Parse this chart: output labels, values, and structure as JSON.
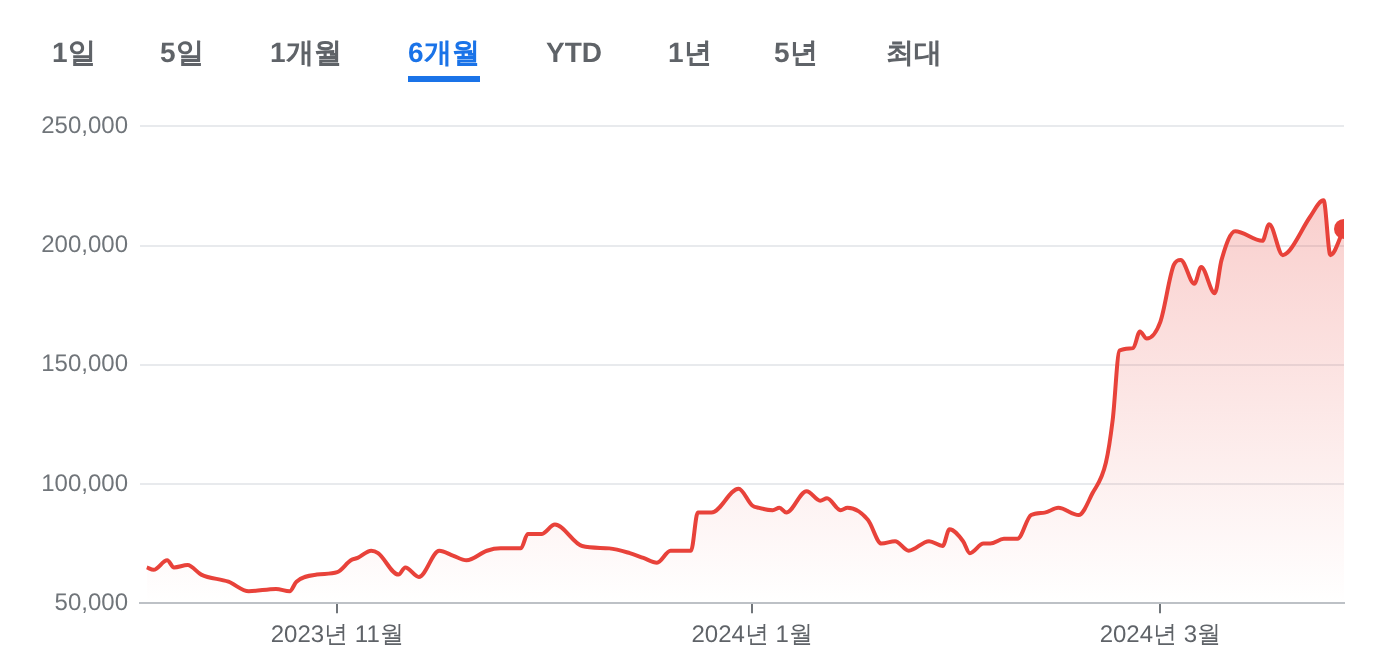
{
  "chart_data": {
    "type": "area",
    "annotations": [
      "1일",
      "5일",
      "1개월",
      "6개월",
      "YTD",
      "1년",
      "5년",
      "최대"
    ],
    "x": [
      "2023-10-04",
      "2023-10-05",
      "2023-10-07",
      "2023-10-08",
      "2023-10-10",
      "2023-10-12",
      "2023-10-16",
      "2023-10-19",
      "2023-10-23",
      "2023-10-25",
      "2023-10-26",
      "2023-10-29",
      "2023-11-01",
      "2023-11-03",
      "2023-11-04",
      "2023-11-06",
      "2023-11-07",
      "2023-11-10",
      "2023-11-11",
      "2023-11-13",
      "2023-11-16",
      "2023-11-18",
      "2023-11-20",
      "2023-11-23",
      "2023-11-25",
      "2023-11-27",
      "2023-11-28",
      "2023-11-29",
      "2023-12-01",
      "2023-12-03",
      "2023-12-07",
      "2023-12-11",
      "2023-12-14",
      "2023-12-16",
      "2023-12-18",
      "2023-12-20",
      "2023-12-23",
      "2023-12-24",
      "2023-12-26",
      "2023-12-30",
      "2024-01-01",
      "2024-01-02",
      "2024-01-04",
      "2024-01-05",
      "2024-01-06",
      "2024-01-09",
      "2024-01-11",
      "2024-01-12",
      "2024-01-14",
      "2024-01-15",
      "2024-01-18",
      "2024-01-20",
      "2024-01-22",
      "2024-01-24",
      "2024-01-27",
      "2024-01-29",
      "2024-01-30",
      "2024-02-01",
      "2024-02-02",
      "2024-02-04",
      "2024-02-05",
      "2024-02-07",
      "2024-02-09",
      "2024-02-11",
      "2024-02-13",
      "2024-02-15",
      "2024-02-18",
      "2024-02-20",
      "2024-02-22",
      "2024-02-23",
      "2024-02-24",
      "2024-02-26",
      "2024-02-27",
      "2024-02-28",
      "2024-03-01",
      "2024-03-03",
      "2024-03-04",
      "2024-03-06",
      "2024-03-07",
      "2024-03-09",
      "2024-03-10",
      "2024-03-12",
      "2024-03-16",
      "2024-03-17",
      "2024-03-19",
      "2024-03-20",
      "2024-03-23",
      "2024-03-25",
      "2024-03-26",
      "2024-03-28"
    ],
    "series": [
      {
        "color": "#e8423a",
        "values": [
          65000,
          64000,
          68000,
          65000,
          66000,
          62000,
          59000,
          55000,
          56000,
          55000,
          59000,
          62000,
          63000,
          68000,
          69000,
          72000,
          71000,
          62000,
          65000,
          61000,
          72000,
          70000,
          68000,
          72000,
          73000,
          73000,
          73000,
          79000,
          79000,
          83000,
          74000,
          73000,
          71000,
          69000,
          67000,
          72000,
          72000,
          88000,
          88000,
          98000,
          91000,
          90000,
          89000,
          90000,
          88000,
          97000,
          93000,
          94000,
          89000,
          90000,
          85000,
          75000,
          76000,
          72000,
          76000,
          74000,
          81000,
          76000,
          71000,
          75000,
          75000,
          77000,
          77000,
          87000,
          88000,
          90000,
          87000,
          96000,
          109000,
          127000,
          156000,
          157000,
          164000,
          161000,
          168000,
          192000,
          194000,
          184000,
          191000,
          180000,
          194000,
          206000,
          202000,
          209000,
          196000,
          198000,
          212000,
          219000,
          196000,
          207000
        ]
      }
    ],
    "xlim": [
      "2023-10-03",
      "2024-03-28"
    ],
    "xticks": [
      {
        "value": "2023-11-01",
        "label": "2023년 11월"
      },
      {
        "value": "2024-01-01",
        "label": "2024년 1월"
      },
      {
        "value": "2024-03-01",
        "label": "2024년 3월"
      }
    ],
    "ylim": [
      50000,
      250000
    ],
    "yticks": [
      {
        "value": 50000,
        "label": "50,000"
      },
      {
        "value": 100000,
        "label": "100,000"
      },
      {
        "value": 150000,
        "label": "150,000"
      },
      {
        "value": 200000,
        "label": "200,000"
      },
      {
        "value": 250000,
        "label": "250,000"
      }
    ],
    "grid": "y"
  }
}
